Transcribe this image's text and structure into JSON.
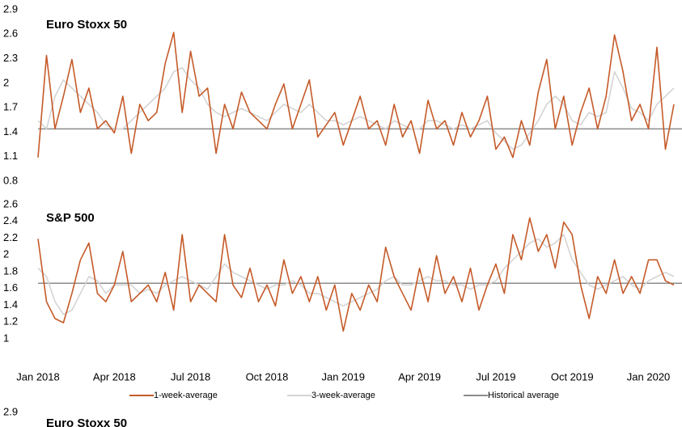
{
  "chart_data": {
    "type": "line",
    "categories": [
      "Jan 2018",
      null,
      null,
      null,
      null,
      null,
      null,
      null,
      null,
      "Apr 2018",
      null,
      null,
      null,
      null,
      null,
      null,
      null,
      null,
      "Jul 2018",
      null,
      null,
      null,
      null,
      null,
      null,
      null,
      null,
      "Oct 2018",
      null,
      null,
      null,
      null,
      null,
      null,
      null,
      null,
      "Jan 2019",
      null,
      null,
      null,
      null,
      null,
      null,
      null,
      null,
      "Apr 2019",
      null,
      null,
      null,
      null,
      null,
      null,
      null,
      null,
      "Jul 2019",
      null,
      null,
      null,
      null,
      null,
      null,
      null,
      null,
      "Oct 2019",
      null,
      null,
      null,
      null,
      null,
      null,
      null,
      null,
      "Jan 2020",
      null,
      null,
      null
    ],
    "series": [
      {
        "name": "1-week-average",
        "color": "#c55a28"
      },
      {
        "name": "3-week-average",
        "color": "#d4d4d4"
      },
      {
        "name": "Historical average",
        "color": "#8c8c8c"
      }
    ],
    "panels": [
      {
        "title": "Euro Stoxx 50",
        "ylim": [
          0.8,
          2.9
        ],
        "yticks": [
          2.9,
          2.6,
          2.3,
          2.0,
          1.7,
          1.4,
          1.1,
          0.8
        ],
        "values": [
          [
            1.15,
            2.4,
            1.5,
            1.9,
            2.35,
            1.7,
            2.0,
            1.5,
            1.6,
            1.45,
            1.9,
            1.2,
            1.8,
            1.6,
            1.7,
            2.3,
            2.68,
            1.7,
            2.45,
            1.9,
            2.0,
            1.2,
            1.8,
            1.5,
            1.95,
            1.7,
            1.6,
            1.5,
            1.8,
            2.05,
            1.5,
            1.8,
            2.1,
            1.4,
            1.55,
            1.7,
            1.3,
            1.6,
            1.9,
            1.5,
            1.6,
            1.3,
            1.8,
            1.4,
            1.6,
            1.2,
            1.85,
            1.5,
            1.6,
            1.3,
            1.7,
            1.4,
            1.6,
            1.9,
            1.25,
            1.4,
            1.15,
            1.6,
            1.3,
            1.95,
            2.35,
            1.5,
            1.9,
            1.3,
            1.7,
            2.0,
            1.5,
            1.9,
            2.65,
            2.2,
            1.6,
            1.8,
            1.5,
            2.5,
            1.25,
            1.8
          ],
          [
            1.6,
            1.5,
            1.9,
            2.1,
            2.0,
            1.9,
            1.8,
            1.7,
            1.55,
            1.5,
            1.5,
            1.6,
            1.7,
            1.8,
            1.9,
            2.0,
            2.2,
            2.25,
            2.1,
            2.0,
            1.8,
            1.7,
            1.65,
            1.7,
            1.75,
            1.7,
            1.65,
            1.6,
            1.7,
            1.8,
            1.75,
            1.7,
            1.8,
            1.7,
            1.6,
            1.6,
            1.55,
            1.6,
            1.65,
            1.6,
            1.55,
            1.5,
            1.6,
            1.55,
            1.5,
            1.5,
            1.6,
            1.6,
            1.55,
            1.5,
            1.55,
            1.5,
            1.55,
            1.6,
            1.45,
            1.35,
            1.25,
            1.3,
            1.45,
            1.6,
            1.8,
            1.9,
            1.8,
            1.6,
            1.55,
            1.7,
            1.65,
            1.7,
            2.2,
            2.0,
            1.75,
            1.7,
            1.6,
            1.8,
            1.9,
            2.0
          ]
        ],
        "average": 1.5
      },
      {
        "title": "S&P 500",
        "ylim": [
          1.0,
          2.6
        ],
        "yticks": [
          2.6,
          2.4,
          2.2,
          2.0,
          1.8,
          1.6,
          1.4,
          1.2,
          1.0
        ],
        "values": [
          [
            2.25,
            1.5,
            1.3,
            1.25,
            1.6,
            2.0,
            2.2,
            1.6,
            1.5,
            1.7,
            2.1,
            1.5,
            1.6,
            1.7,
            1.5,
            1.85,
            1.4,
            2.3,
            1.5,
            1.7,
            1.6,
            1.5,
            2.3,
            1.7,
            1.55,
            1.9,
            1.5,
            1.7,
            1.45,
            2.0,
            1.6,
            1.8,
            1.5,
            1.8,
            1.4,
            1.7,
            1.15,
            1.6,
            1.4,
            1.7,
            1.5,
            2.15,
            1.8,
            1.6,
            1.4,
            1.9,
            1.5,
            2.05,
            1.6,
            1.8,
            1.5,
            1.9,
            1.4,
            1.7,
            1.95,
            1.6,
            2.3,
            2.0,
            2.5,
            2.1,
            2.3,
            1.9,
            2.45,
            2.3,
            1.7,
            1.3,
            1.8,
            1.6,
            2.0,
            1.6,
            1.8,
            1.6,
            2.0,
            2.0,
            1.75,
            1.7
          ],
          [
            1.9,
            1.8,
            1.5,
            1.35,
            1.4,
            1.6,
            1.8,
            1.75,
            1.6,
            1.7,
            1.7,
            1.7,
            1.6,
            1.65,
            1.6,
            1.7,
            1.75,
            1.8,
            1.75,
            1.7,
            1.65,
            1.8,
            1.95,
            1.85,
            1.8,
            1.75,
            1.7,
            1.65,
            1.7,
            1.7,
            1.75,
            1.7,
            1.6,
            1.6,
            1.55,
            1.5,
            1.45,
            1.5,
            1.55,
            1.6,
            1.65,
            1.75,
            1.8,
            1.7,
            1.7,
            1.75,
            1.8,
            1.75,
            1.75,
            1.7,
            1.7,
            1.65,
            1.7,
            1.7,
            1.75,
            1.9,
            2.0,
            2.1,
            2.2,
            2.25,
            2.15,
            2.2,
            2.3,
            2.0,
            1.85,
            1.7,
            1.65,
            1.7,
            1.75,
            1.8,
            1.7,
            1.65,
            1.75,
            1.8,
            1.85,
            1.8
          ]
        ],
        "average": 1.72
      },
      {
        "title": "Euro Stoxx 50",
        "yticks": [
          2.9
        ]
      }
    ]
  }
}
